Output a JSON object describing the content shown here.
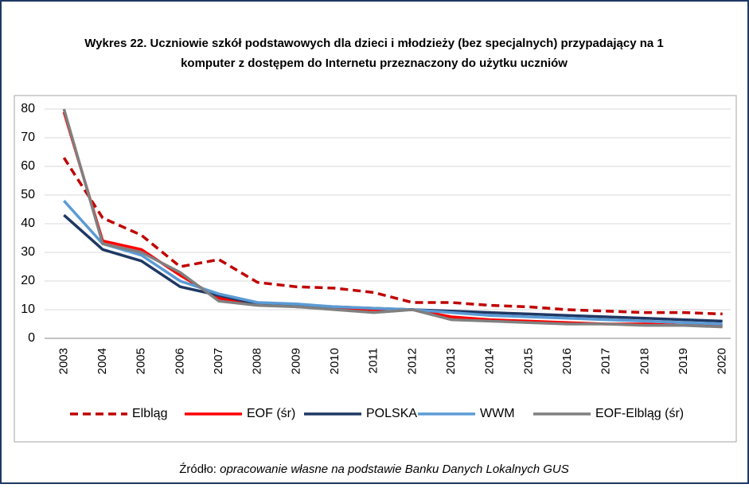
{
  "chart_data": {
    "type": "line",
    "title": "Wykres 22. Uczniowie szkół podstawowych dla dzieci i młodzieży (bez specjalnych) przypadający na 1",
    "title_line2": "komputer z dostępem do Internetu przeznaczony do użytku uczniów",
    "source_label": "Źródło:",
    "source_text": "opracowanie własne na podstawie Banku Danych Lokalnych GUS",
    "categories": [
      "2003",
      "2004",
      "2005",
      "2006",
      "2007",
      "2008",
      "2009",
      "2010",
      "2011",
      "2012",
      "2013",
      "2014",
      "2015",
      "2016",
      "2017",
      "2018",
      "2019",
      "2020"
    ],
    "series": [
      {
        "name": "Elbląg",
        "color": "#c00000",
        "dashed": true,
        "values": [
          63,
          42,
          36,
          25,
          27.5,
          19.5,
          18,
          17.5,
          16,
          12.5,
          12.5,
          11.5,
          11,
          10,
          9.5,
          9,
          9,
          8.5
        ]
      },
      {
        "name": "EOF (śr)",
        "color": "#ff0000",
        "dashed": false,
        "values": [
          79,
          34,
          31,
          22,
          14,
          12,
          11,
          10.5,
          10,
          10,
          7.5,
          6.5,
          6,
          5.5,
          5,
          5,
          4.5,
          4.5
        ]
      },
      {
        "name": "POLSKA",
        "color": "#1f3864",
        "dashed": false,
        "values": [
          43,
          31,
          27,
          18,
          15,
          12,
          11.5,
          11,
          10.5,
          10,
          9.5,
          9,
          8.5,
          8,
          7.5,
          7,
          6.5,
          6
        ]
      },
      {
        "name": "WWM",
        "color": "#5b9bd5",
        "dashed": false,
        "values": [
          48,
          33,
          29,
          20,
          15.5,
          12.5,
          12,
          11,
          10.5,
          10,
          9,
          8,
          7.5,
          7,
          6.5,
          6,
          5.5,
          5
        ]
      },
      {
        "name": "EOF-Elbląg (śr)",
        "color": "#808080",
        "dashed": false,
        "values": [
          80,
          33,
          30,
          23,
          13,
          11.5,
          11,
          10,
          9,
          10,
          6.5,
          6,
          5.5,
          5,
          5,
          4.5,
          4.5,
          4
        ]
      }
    ],
    "ylim": [
      0,
      80
    ],
    "yticks": [
      0,
      10,
      20,
      30,
      40,
      50,
      60,
      70,
      80
    ],
    "grid": true,
    "legend": "bottom"
  }
}
